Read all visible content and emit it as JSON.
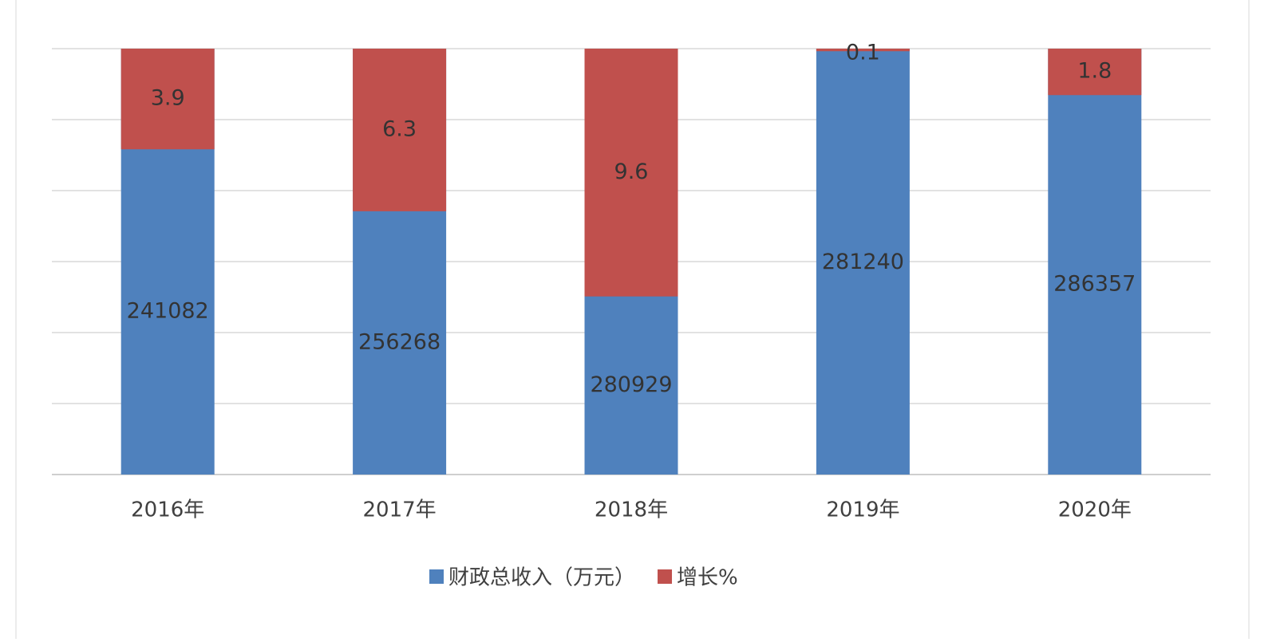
{
  "chart_data": {
    "type": "bar",
    "categories": [
      "2016年",
      "2017年",
      "2018年",
      "2019年",
      "2020年"
    ],
    "stack": "percent",
    "series": [
      {
        "name": "财政总收入（万元）",
        "color": "#4f81bd",
        "values": [
          241082,
          256268,
          280929,
          281240,
          286357
        ]
      },
      {
        "name": "增长%",
        "color": "#c0504d",
        "axis": "y2",
        "values": [
          3.9,
          6.3,
          9.6,
          0.1,
          1.8
        ]
      }
    ],
    "y2lim": [
      16.5,
      0
    ],
    "grid": true,
    "legend": "bottom"
  }
}
